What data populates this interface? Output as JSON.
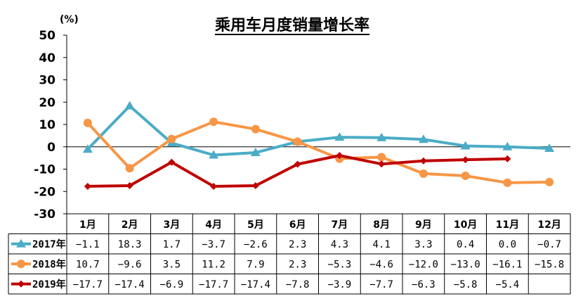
{
  "chart_data": {
    "type": "line",
    "title": "乘用车月度销量增长率",
    "unit_label": "(%)",
    "ylim": [
      -30,
      50
    ],
    "yticks": [
      "50",
      "40",
      "30",
      "20",
      "10",
      "0",
      "-10",
      "-20",
      "-30"
    ],
    "categories": [
      "1月",
      "2月",
      "3月",
      "4月",
      "5月",
      "6月",
      "7月",
      "8月",
      "9月",
      "10月",
      "11月",
      "12月"
    ],
    "series": [
      {
        "name": "2017年",
        "color": "#4bacc6",
        "marker": "triangle",
        "values": [
          -1.1,
          18.3,
          1.7,
          -3.7,
          -2.6,
          2.3,
          4.3,
          4.1,
          3.3,
          0.4,
          0.0,
          -0.7
        ],
        "labels": [
          "−1.1",
          "18.3",
          "1.7",
          "−3.7",
          "−2.6",
          "2.3",
          "4.3",
          "4.1",
          "3.3",
          "0.4",
          "0.0",
          "−0.7"
        ]
      },
      {
        "name": "2018年",
        "color": "#f79646",
        "marker": "circle",
        "values": [
          10.7,
          -9.6,
          3.5,
          11.2,
          7.9,
          2.3,
          -5.3,
          -4.6,
          -12.0,
          -13.0,
          -16.1,
          -15.8
        ],
        "labels": [
          "10.7",
          "−9.6",
          "3.5",
          "11.2",
          "7.9",
          "2.3",
          "−5.3",
          "−4.6",
          "−12.0",
          "−13.0",
          "−16.1",
          "−15.8"
        ]
      },
      {
        "name": "2019年",
        "color": "#c00000",
        "marker": "diamond",
        "values": [
          -17.7,
          -17.4,
          -6.9,
          -17.7,
          -17.4,
          -7.8,
          -3.9,
          -7.7,
          -6.3,
          -5.8,
          -5.4,
          null
        ],
        "labels": [
          "−17.7",
          "−17.4",
          "−6.9",
          "−17.7",
          "−17.4",
          "−7.8",
          "−3.9",
          "−7.7",
          "−6.3",
          "−5.8",
          "−5.4",
          ""
        ]
      }
    ],
    "grid": false,
    "legend": "data-table"
  }
}
